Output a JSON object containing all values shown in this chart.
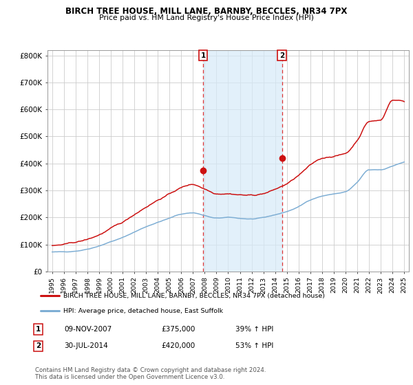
{
  "title": "BIRCH TREE HOUSE, MILL LANE, BARNBY, BECCLES, NR34 7PX",
  "subtitle": "Price paid vs. HM Land Registry's House Price Index (HPI)",
  "ylim": [
    0,
    820000
  ],
  "yticks": [
    0,
    100000,
    200000,
    300000,
    400000,
    500000,
    600000,
    700000,
    800000
  ],
  "ytick_labels": [
    "£0",
    "£100K",
    "£200K",
    "£300K",
    "£400K",
    "£500K",
    "£600K",
    "£700K",
    "£800K"
  ],
  "sale1_x": 2007.87,
  "sale1_value": 375000,
  "sale2_x": 2014.58,
  "sale2_value": 420000,
  "hpi_line_color": "#7eaed4",
  "price_line_color": "#cc1111",
  "shade_color": "#d6eaf8",
  "legend_label_red": "BIRCH TREE HOUSE, MILL LANE, BARNBY, BECCLES, NR34 7PX (detached house)",
  "legend_label_blue": "HPI: Average price, detached house, East Suffolk",
  "table_row1": [
    "1",
    "09-NOV-2007",
    "£375,000",
    "39% ↑ HPI"
  ],
  "table_row2": [
    "2",
    "30-JUL-2014",
    "£420,000",
    "53% ↑ HPI"
  ],
  "footer": "Contains HM Land Registry data © Crown copyright and database right 2024.\nThis data is licensed under the Open Government Licence v3.0.",
  "x_years": [
    1995,
    1996,
    1997,
    1998,
    1999,
    2000,
    2001,
    2002,
    2003,
    2004,
    2005,
    2006,
    2007,
    2008,
    2009,
    2010,
    2011,
    2012,
    2013,
    2014,
    2015,
    2016,
    2017,
    2018,
    2019,
    2020,
    2021,
    2022,
    2023,
    2024,
    2025
  ]
}
